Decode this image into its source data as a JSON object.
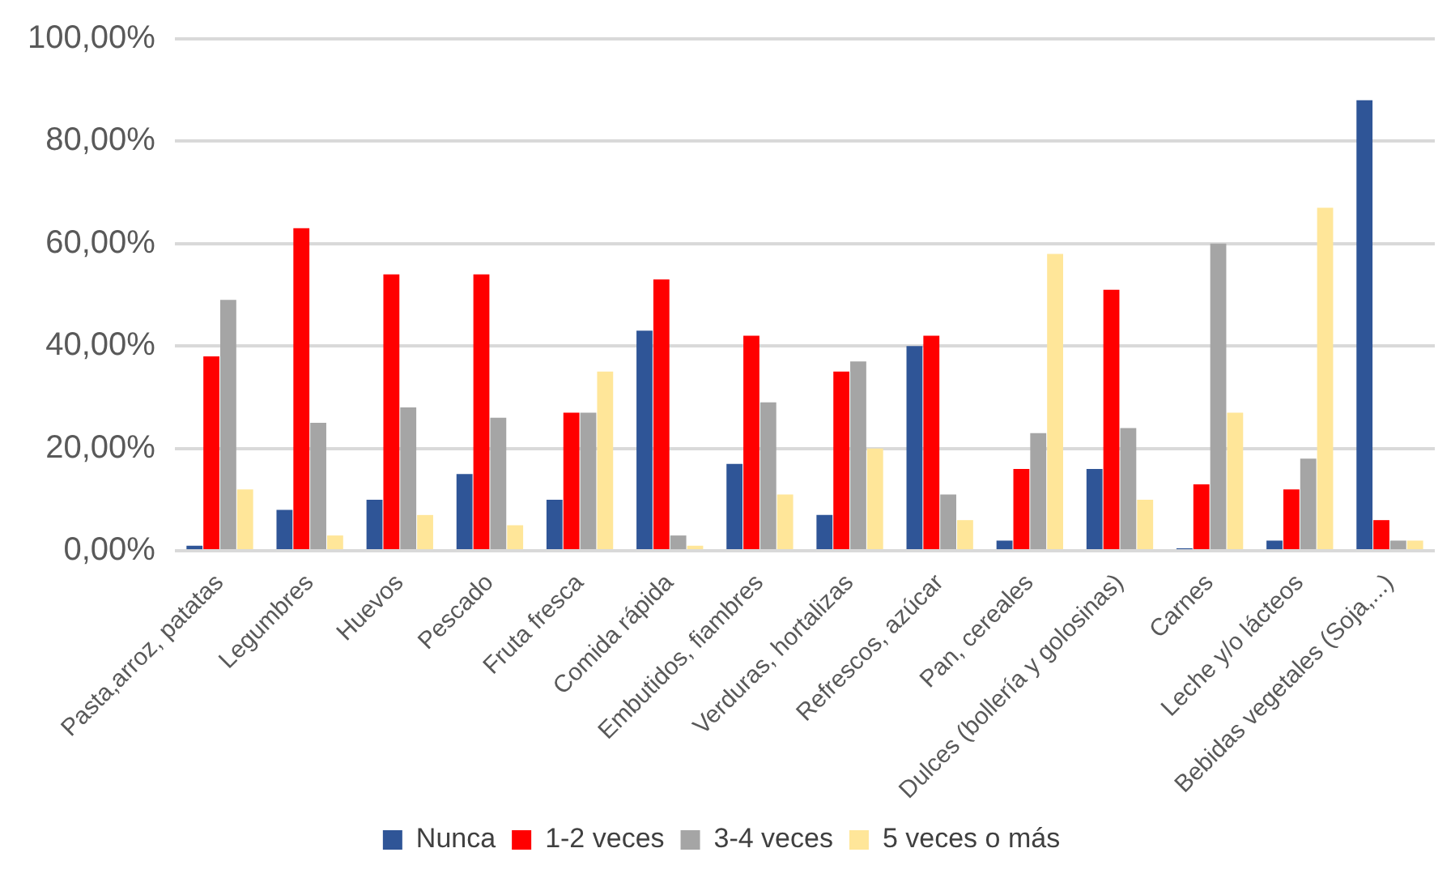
{
  "chart_data": {
    "type": "bar",
    "categories": [
      "Pasta,arroz, patatas",
      "Legumbres",
      "Huevos",
      "Pescado",
      "Fruta fresca",
      "Comida rápida",
      "Embutidos, fiambres",
      "Verduras, hortalizas",
      "Refrescos, azúcar",
      "Pan, cereales",
      "Dulces (bollería y golosinas)",
      "Carnes",
      "Leche y/o lácteos",
      "Bebidas vegetales (Soja,...)"
    ],
    "series": [
      {
        "name": "Nunca",
        "color": "#2f5597",
        "values": [
          1,
          8,
          10,
          15,
          10,
          43,
          17,
          7,
          40,
          2,
          16,
          0.5,
          2,
          88
        ]
      },
      {
        "name": "1-2 veces",
        "color": "#ff0000",
        "values": [
          38,
          63,
          54,
          54,
          27,
          53,
          42,
          35,
          42,
          16,
          51,
          13,
          12,
          6
        ]
      },
      {
        "name": "3-4 veces",
        "color": "#a5a5a5",
        "values": [
          49,
          25,
          28,
          26,
          27,
          3,
          29,
          37,
          11,
          23,
          24,
          60,
          18,
          2
        ]
      },
      {
        "name": "5 veces o más",
        "color": "#ffe699",
        "values": [
          12,
          3,
          7,
          5,
          35,
          1,
          11,
          20,
          6,
          58,
          10,
          27,
          67,
          2
        ]
      }
    ],
    "ylim": [
      0,
      100
    ],
    "yticks": [
      {
        "value": 0,
        "label": "0,00%"
      },
      {
        "value": 20,
        "label": "20,00%"
      },
      {
        "value": 40,
        "label": "40,00%"
      },
      {
        "value": 60,
        "label": "60,00%"
      },
      {
        "value": 80,
        "label": "80,00%"
      },
      {
        "value": 100,
        "label": "100,00%"
      }
    ],
    "grid": "y",
    "legend": "bottom"
  }
}
